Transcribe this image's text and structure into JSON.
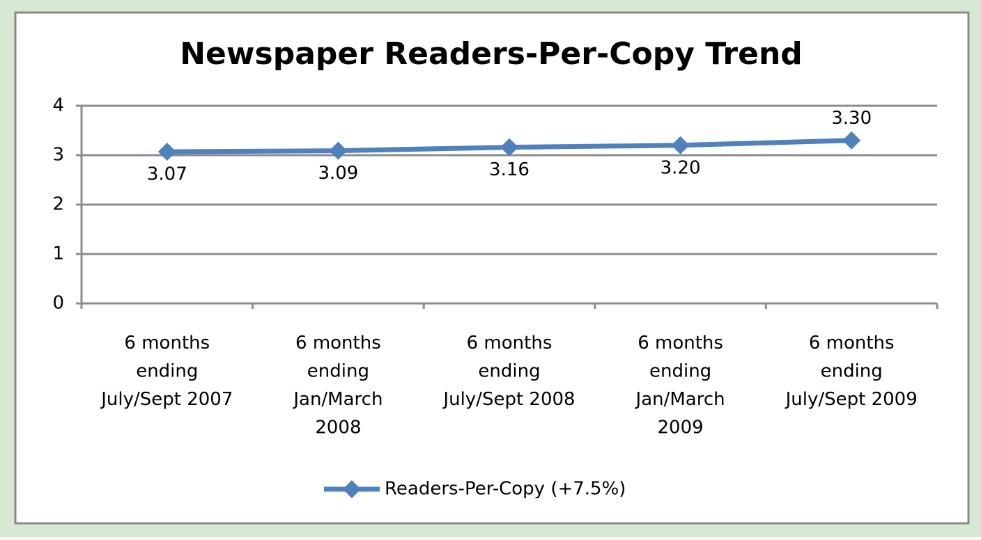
{
  "chart_data": {
    "type": "line",
    "title": "Newspaper Readers-Per-Copy Trend",
    "categories": [
      "6 months\nending\nJuly/Sept 2007",
      "6 months\nending\nJan/March\n2008",
      "6 months\nending\nJuly/Sept 2008",
      "6 months\nending\nJan/March\n2009",
      "6 months\nending\nJuly/Sept 2009"
    ],
    "series": [
      {
        "name": "Readers-Per-Copy (+7.5%)",
        "color": "#4f81bd",
        "values": [
          3.07,
          3.09,
          3.16,
          3.2,
          3.3
        ],
        "value_labels": [
          "3.07",
          "3.09",
          "3.16",
          "3.20",
          "3.30"
        ]
      }
    ],
    "ylim": [
      0,
      4
    ],
    "yticks": [
      0,
      1,
      2,
      3,
      4
    ],
    "grid": true,
    "legend": "bottom"
  }
}
